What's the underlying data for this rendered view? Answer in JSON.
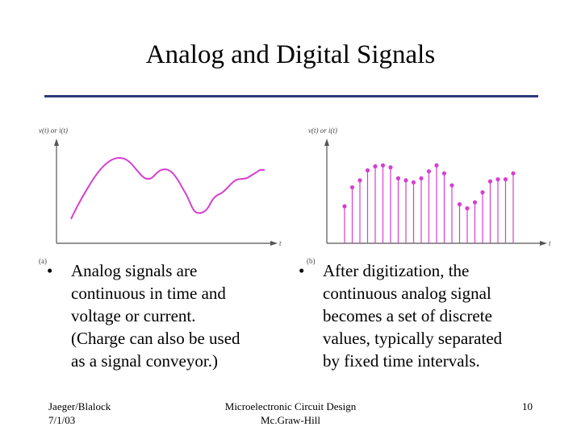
{
  "slide": {
    "title": "Analog and Digital Signals",
    "colors": {
      "rule": "#2e3a7a",
      "signal": "#d63fd0",
      "axis": "#555555"
    }
  },
  "figure_a": {
    "y_label": "v(t) or i(t)",
    "x_label": "t",
    "tag": "(a)"
  },
  "figure_b": {
    "y_label": "v(t) or i(t)",
    "x_label": "t",
    "tag": "(b)",
    "sample_values": [
      0.37,
      0.56,
      0.63,
      0.73,
      0.77,
      0.78,
      0.76,
      0.65,
      0.63,
      0.61,
      0.65,
      0.72,
      0.78,
      0.7,
      0.58,
      0.39,
      0.35,
      0.41,
      0.51,
      0.62,
      0.64,
      0.64,
      0.7
    ]
  },
  "bullets": {
    "left": "Analog signals are\ncontinuous in time and\nvoltage or current.\n(Charge can also be used\nas a signal conveyor.)",
    "right": "After digitization, the\ncontinuous analog signal\nbecomes a set of discrete\nvalues, typically separated\nby fixed time intervals.",
    "marker": "•"
  },
  "footer": {
    "left_line1": "Jaeger/Blalock",
    "left_line2": "7/1/03",
    "center_line1": "Microelectronic Circuit Design",
    "center_line2": "Mc.Graw-Hill",
    "page": "10"
  }
}
